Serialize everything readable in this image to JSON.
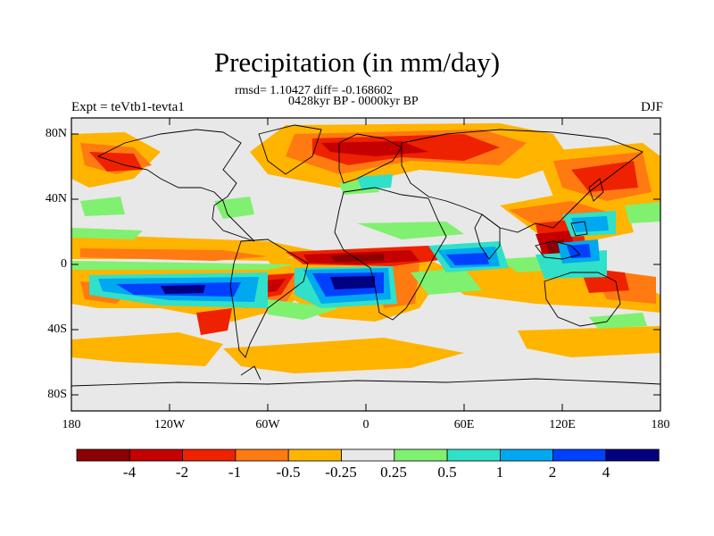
{
  "header": {
    "title": "Precipitation (in mm/day)",
    "stats": "rmsd= 1.10427 diff= -0.168602",
    "period": "0428kyr BP - 0000kyr BP",
    "expt": "Expt = teVtb1-tevta1",
    "season": "DJF"
  },
  "axes": {
    "lat_labels": [
      "80N",
      "40N",
      "0",
      "40S",
      "80S"
    ],
    "lon_labels": [
      "180",
      "120W",
      "60W",
      "0",
      "60E",
      "120E",
      "180"
    ]
  },
  "colorbar": {
    "labels": [
      "-4",
      "-2",
      "-1",
      "-0.5",
      "-0.25",
      "0.25",
      "0.5",
      "1",
      "2",
      "4"
    ],
    "colors": [
      "#8b0000",
      "#c40000",
      "#ee2200",
      "#ff7a10",
      "#ffb400",
      "#e8e8e8",
      "#80f070",
      "#30e0c8",
      "#00a8f0",
      "#0040ff",
      "#000080"
    ]
  },
  "map_palette": {
    "land_outline": "#000000",
    "ocean_neutral": "#e8e8e8"
  }
}
